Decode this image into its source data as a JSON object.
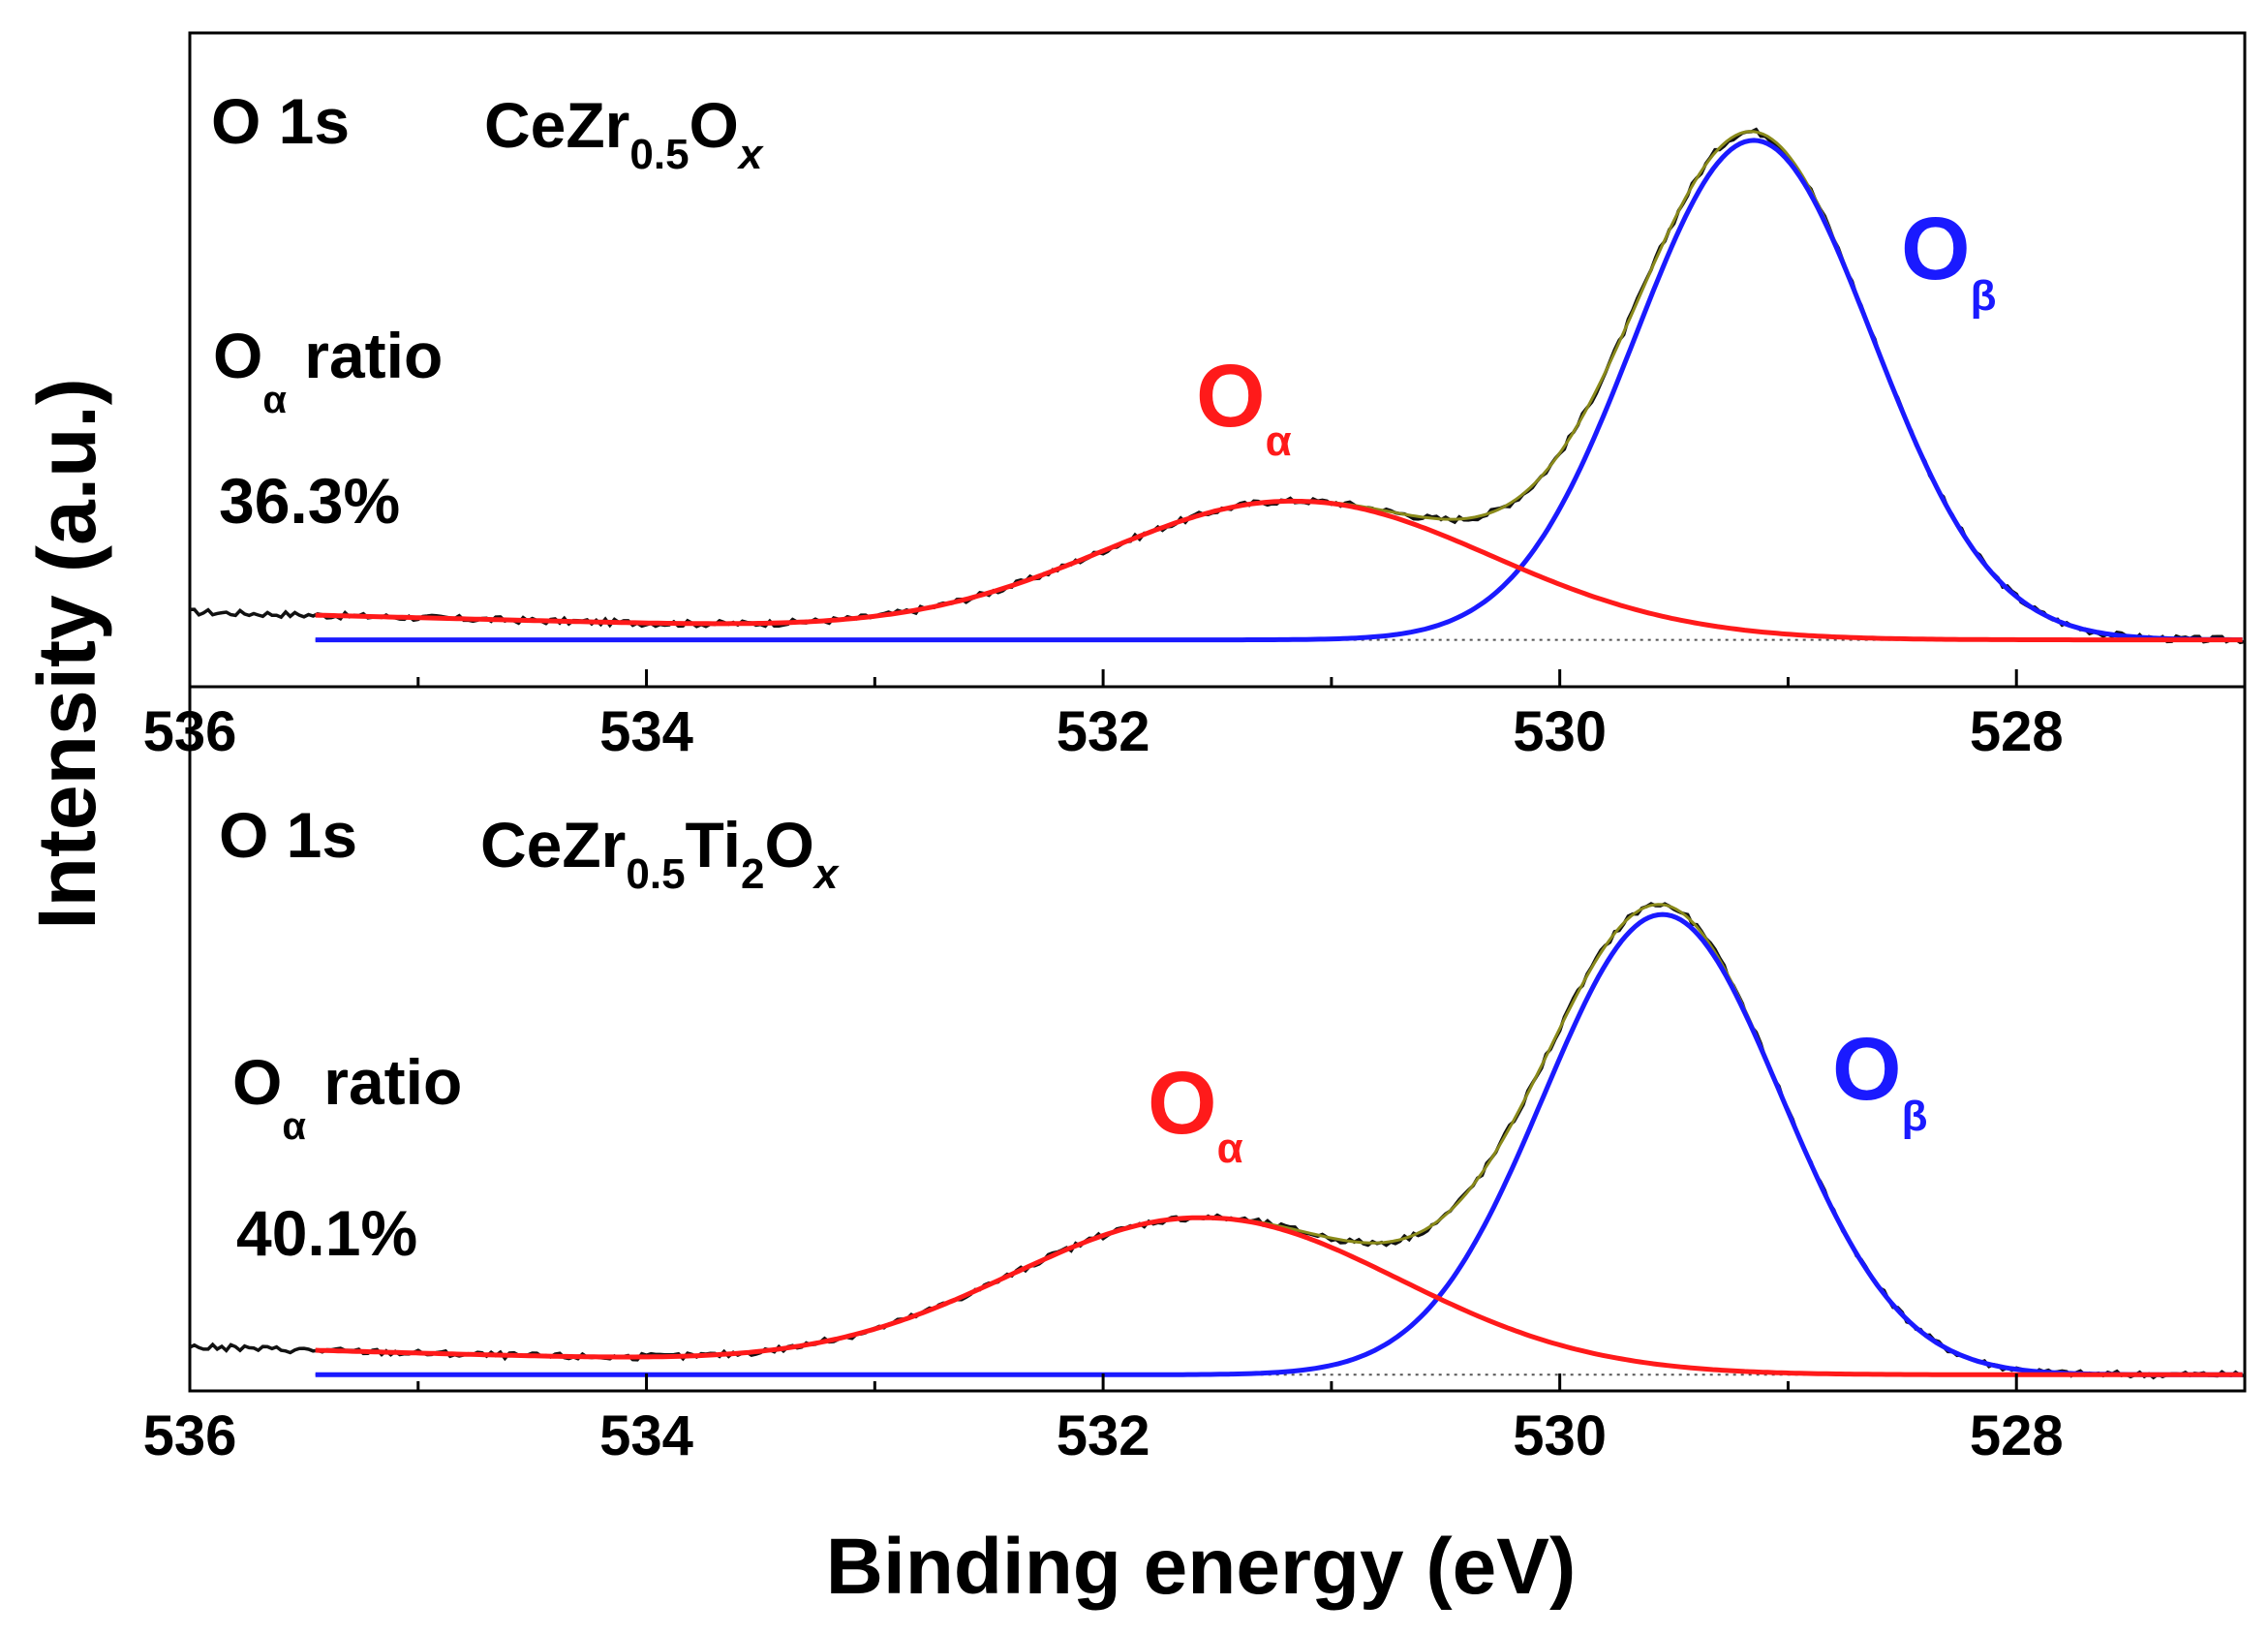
{
  "figure": {
    "y_axis_label": "Intensity (a.u.)",
    "x_axis_label": "Binding energy (eV)"
  },
  "colors": {
    "raw": "#111111",
    "envelope": "#8a8a1a",
    "o_alpha": "#ff1a1a",
    "o_beta": "#1a1aff",
    "baseline": "#555555",
    "axis": "#000000"
  },
  "chart_data": [
    {
      "type": "line",
      "panel": "top",
      "core_level": "O 1s",
      "sample": {
        "base": "CeZr",
        "sub1": "0.5",
        "mid": "O",
        "sub2": "x"
      },
      "ratio_label": {
        "main": "O",
        "sub": "α",
        "rest": " ratio"
      },
      "ratio_value": "36.3%",
      "peak_labels": {
        "alpha": {
          "main": "O",
          "sub": "α"
        },
        "beta": {
          "main": "O",
          "sub": "β"
        }
      },
      "xlabel": "Binding energy (eV)",
      "ylabel": "Intensity (a.u.)",
      "xlim": [
        536,
        527
      ],
      "x_ticks": [
        "536",
        "534",
        "532",
        "530",
        "528"
      ],
      "ylim": [
        0,
        1.1
      ],
      "fit_range": [
        535.45,
        527
      ],
      "series": [
        {
          "name": "O_alpha",
          "center": 531.15,
          "amplitude": 0.265,
          "sigma": 0.85,
          "tail": 0.011
        },
        {
          "name": "O_beta",
          "center": 529.15,
          "amplitude": 0.955,
          "sigma": 0.52
        },
        {
          "name": "baseline",
          "value": 0.01
        },
        {
          "name": "raw",
          "noise": 0.006
        }
      ]
    },
    {
      "type": "line",
      "panel": "bottom",
      "core_level": "O 1s",
      "sample": {
        "base": "CeZr",
        "sub1": "0.5",
        "mid": "Ti",
        "sub2": "2",
        "mid2": "O",
        "sub3": "x"
      },
      "ratio_label": {
        "main": "O",
        "sub": "α",
        "rest": " ratio"
      },
      "ratio_value": "40.1%",
      "peak_labels": {
        "alpha": {
          "main": "O",
          "sub": "α"
        },
        "beta": {
          "main": "O",
          "sub": "β"
        }
      },
      "xlabel": "Binding energy (eV)",
      "ylabel": "Intensity (a.u.)",
      "xlim": [
        536,
        527
      ],
      "x_ticks": [
        "536",
        "534",
        "532",
        "530",
        "528"
      ],
      "ylim": [
        0,
        1.1
      ],
      "fit_range": [
        535.45,
        527
      ],
      "series": [
        {
          "name": "O_alpha",
          "center": 531.55,
          "amplitude": 0.3,
          "sigma": 0.85,
          "tail": 0.012
        },
        {
          "name": "O_beta",
          "center": 529.55,
          "amplitude": 0.88,
          "sigma": 0.52
        },
        {
          "name": "baseline",
          "value": 0.005
        },
        {
          "name": "raw",
          "noise": 0.006
        }
      ]
    }
  ]
}
